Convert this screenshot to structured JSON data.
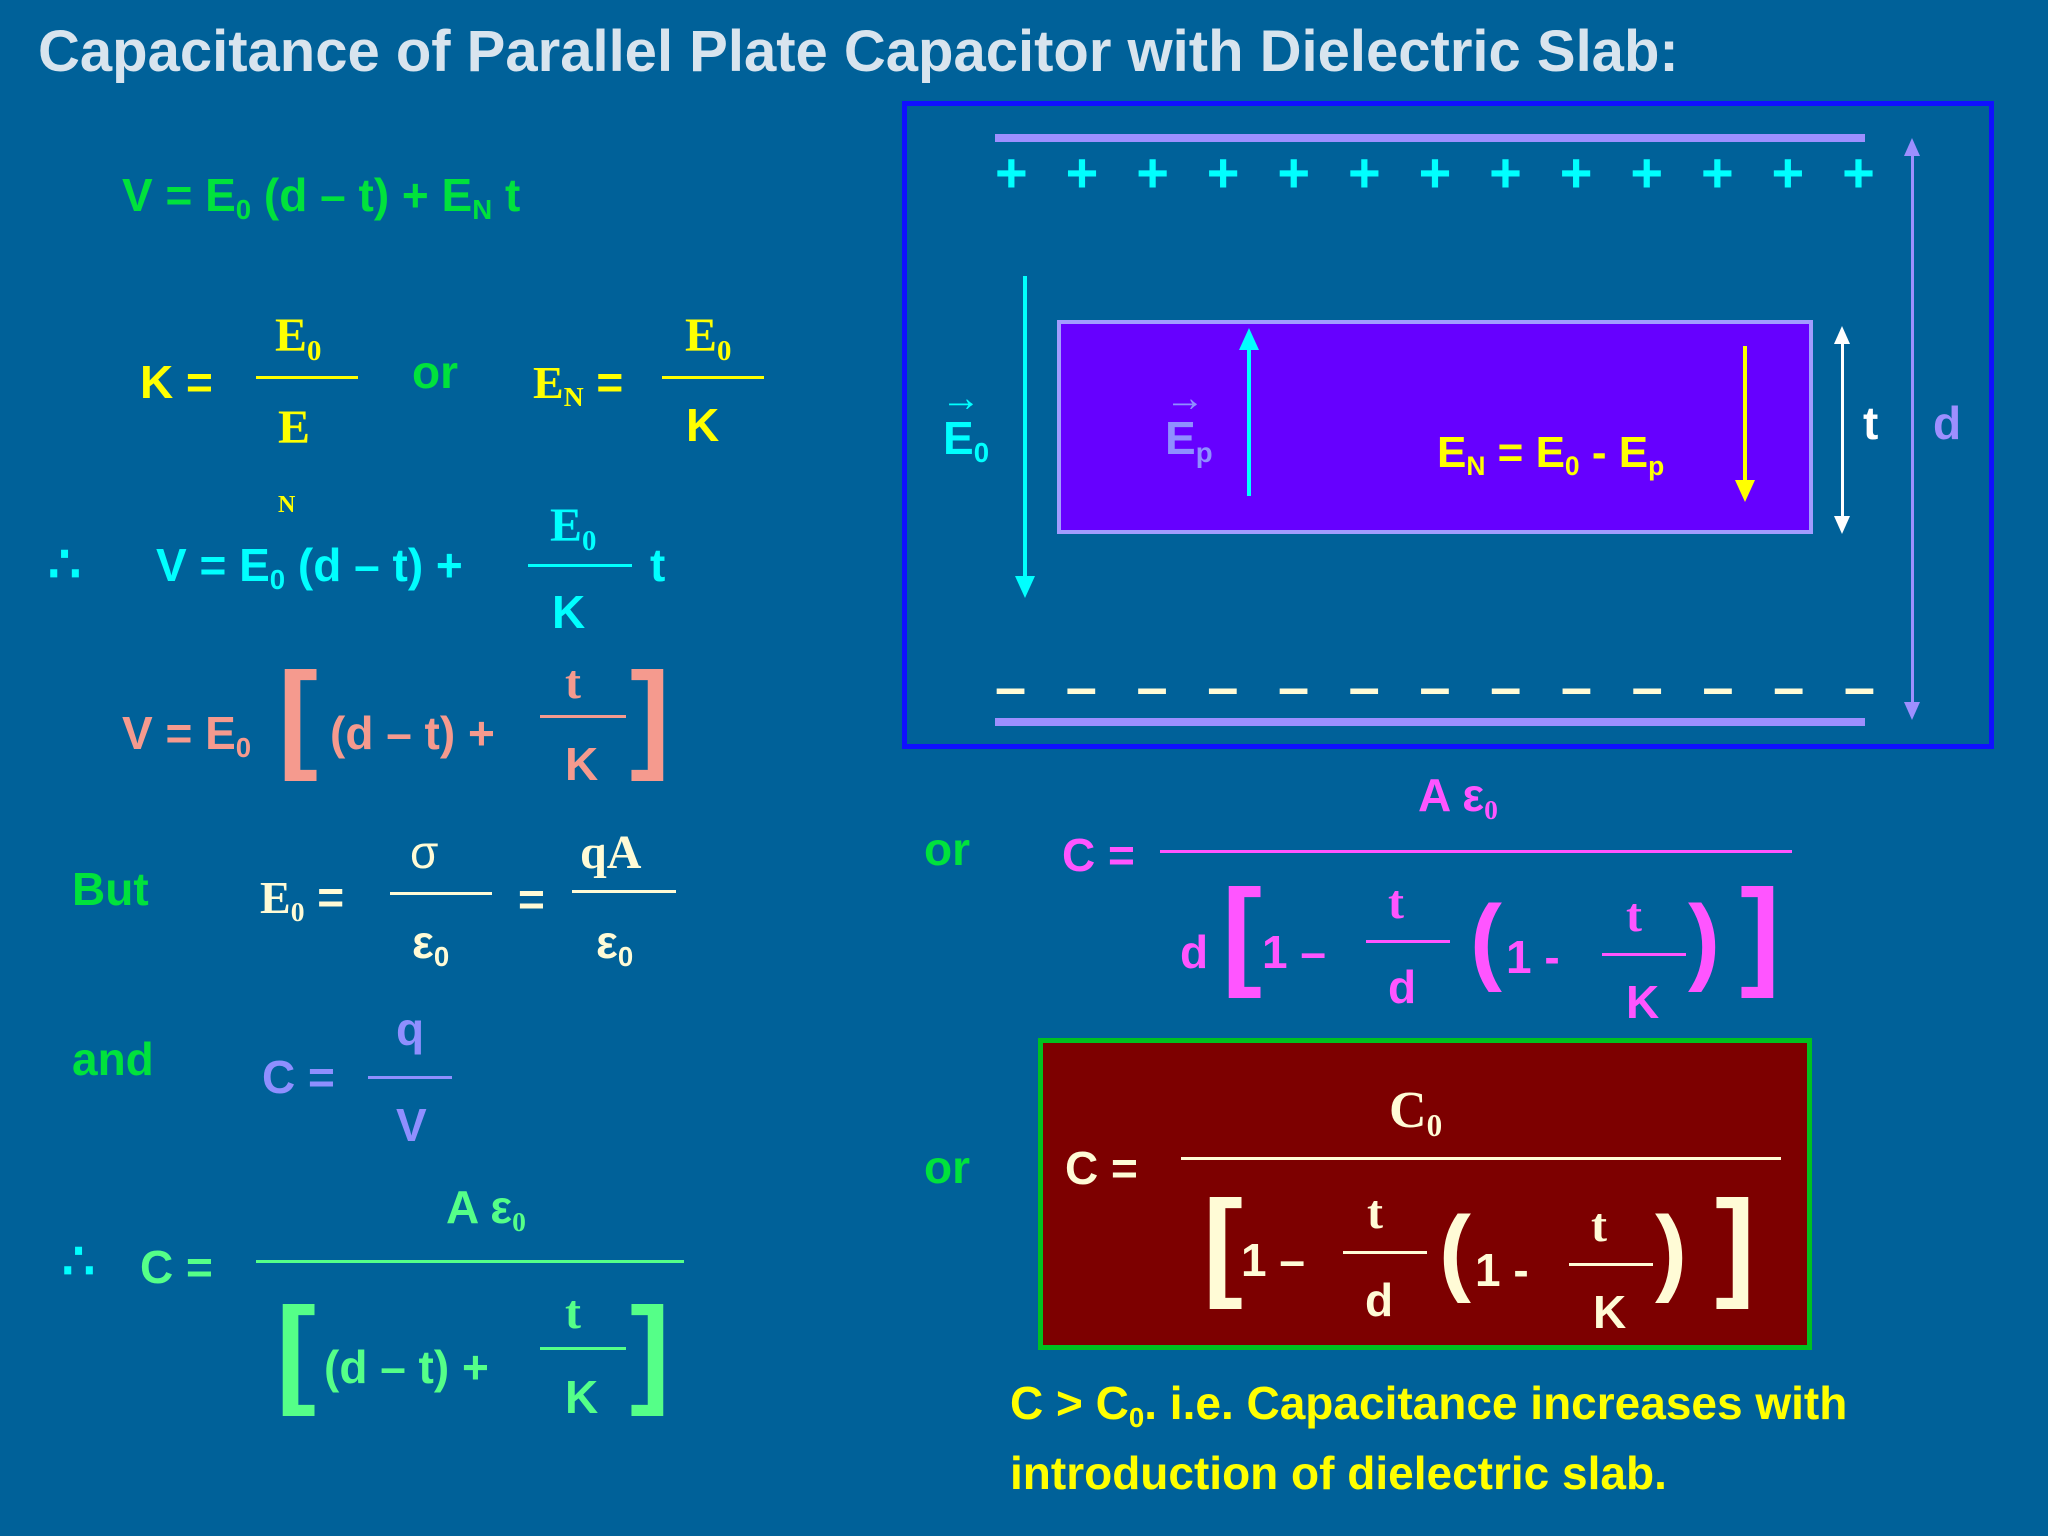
{
  "title": "Capacitance of Parallel Plate Capacitor with Dielectric Slab:",
  "eq1": {
    "text_a": "V = E",
    "sub0": "0",
    "text_b": " (d – t) + E",
    "subN": "N",
    "text_c": " t"
  },
  "eq2": {
    "k_eq": "K =",
    "num1": "E",
    "num1_sub": "0",
    "den1": "E",
    "den1_sub": "N",
    "or": "or",
    "en": "E",
    "en_sub": "N",
    "en_eq": " =",
    "num2": "E",
    "num2_sub": "0",
    "den2": "K"
  },
  "eq3": {
    "therefore": "∴",
    "text_a": "V = E",
    "sub0": "0",
    "text_b": " (d – t) +",
    "num": "E",
    "num_sub": "0",
    "den": "K",
    "t": "t"
  },
  "eq4": {
    "text_a": "V = E",
    "sub0": "0",
    "lbr": "[",
    "inner": "(d – t) +",
    "num": "t",
    "den": "K",
    "rbr": "]"
  },
  "eq5": {
    "but": "But",
    "e0": "E",
    "e0_sub": "0",
    "eq": "=",
    "num1": "σ",
    "den1": "ε",
    "den1_sub": "0",
    "eq2": "=",
    "num2": "qA",
    "den2": "ε",
    "den2_sub": "0"
  },
  "eq6": {
    "and": "and",
    "c_eq": "C =",
    "num": "q",
    "den": "V"
  },
  "eq7": {
    "therefore": "∴",
    "c_eq": "C =",
    "num": "A ε",
    "num_sub": "0",
    "lbr": "[",
    "inner": "(d – t) +",
    "fnum": "t",
    "fden": "K",
    "rbr": "]"
  },
  "diagram": {
    "plus_signs": [
      "+",
      "+",
      "+",
      "+",
      "+",
      "+",
      "+",
      "+",
      "+",
      "+",
      "+",
      "+",
      "+"
    ],
    "minus_signs": [
      "–",
      "–",
      "–",
      "–",
      "–",
      "–",
      "–",
      "–",
      "–",
      "–",
      "–",
      "–",
      "–"
    ],
    "e0_label": "E",
    "e0_sub": "0",
    "e0_vec": "→",
    "ep_label": "E",
    "ep_sub": "p",
    "ep_vec": "→",
    "en_text_a": "E",
    "en_sub": "N",
    "en_text_b": " = E",
    "en_sub0": "0",
    "en_text_c": " - E",
    "en_subp": "p",
    "t_label": "t",
    "d_label": "d"
  },
  "eq8": {
    "or": "or",
    "c_eq": "C =",
    "num": "A ε",
    "num_sub": "0",
    "d": "d",
    "lbr": "[",
    "one_minus": "1 –",
    "fnum": "t",
    "fden": "d",
    "lparen": "(",
    "one_minus2": "1 -",
    "fnum2": "t",
    "fden2": "K",
    "rparen": ")",
    "rbr": "]"
  },
  "eq9": {
    "or": "or",
    "c_eq": "C =",
    "num": "C",
    "num_sub": "0",
    "lbr": "[",
    "one_minus": "1 –",
    "fnum": "t",
    "fden": "d",
    "lparen": "(",
    "one_minus2": "1 -",
    "fnum2": "t",
    "fden2": "K",
    "rparen": ")",
    "rbr": "]"
  },
  "conclusion": {
    "line1_a": "C > C",
    "line1_sub": "0",
    "line1_b": ".  i.e. Capacitance increases with",
    "line2": "introduction of dielectric slab."
  },
  "colors": {
    "bg": "#006199",
    "green": "#00e23c",
    "yellow": "#ffff00",
    "cyan": "#00ffff",
    "salmon": "#f59a8e",
    "violet": "#8f8fff",
    "magenta": "#ff55ff",
    "mint": "#55ff88",
    "slab": "#6600ff",
    "box": "#7d0000",
    "cream": "#fffbd6"
  }
}
